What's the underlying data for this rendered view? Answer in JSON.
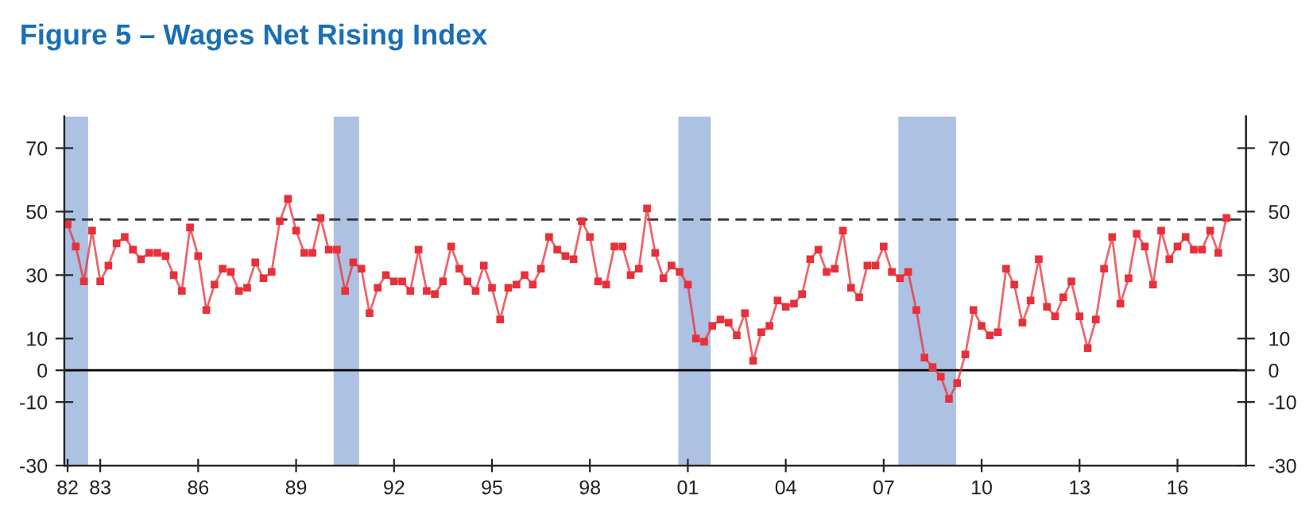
{
  "chart_data": {
    "type": "line",
    "title": "Figure 5 – Wages Net Rising Index",
    "x": [
      1982,
      1982.25,
      1982.5,
      1982.75,
      1983,
      1983.25,
      1983.5,
      1983.75,
      1984,
      1984.25,
      1984.5,
      1984.75,
      1985,
      1985.25,
      1985.5,
      1985.75,
      1986,
      1986.25,
      1986.5,
      1986.75,
      1987,
      1987.25,
      1987.5,
      1987.75,
      1988,
      1988.25,
      1988.5,
      1988.75,
      1989,
      1989.25,
      1989.5,
      1989.75,
      1990,
      1990.25,
      1990.5,
      1990.75,
      1991,
      1991.25,
      1991.5,
      1991.75,
      1992,
      1992.25,
      1992.5,
      1992.75,
      1993,
      1993.25,
      1993.5,
      1993.75,
      1994,
      1994.25,
      1994.5,
      1994.75,
      1995,
      1995.25,
      1995.5,
      1995.75,
      1996,
      1996.25,
      1996.5,
      1996.75,
      1997,
      1997.25,
      1997.5,
      1997.75,
      1998,
      1998.25,
      1998.5,
      1998.75,
      1999,
      1999.25,
      1999.5,
      1999.75,
      2000,
      2000.25,
      2000.5,
      2000.75,
      2001,
      2001.25,
      2001.5,
      2001.75,
      2002,
      2002.25,
      2002.5,
      2002.75,
      2003,
      2003.25,
      2003.5,
      2003.75,
      2004,
      2004.25,
      2004.5,
      2004.75,
      2005,
      2005.25,
      2005.5,
      2005.75,
      2006,
      2006.25,
      2006.5,
      2006.75,
      2007,
      2007.25,
      2007.5,
      2007.75,
      2008,
      2008.25,
      2008.5,
      2008.75,
      2009,
      2009.25,
      2009.5,
      2009.75,
      2010,
      2010.25,
      2010.5,
      2010.75,
      2011,
      2011.25,
      2011.5,
      2011.75,
      2012,
      2012.25,
      2012.5,
      2012.75,
      2013,
      2013.25,
      2013.5,
      2013.75,
      2014,
      2014.25,
      2014.5,
      2014.75,
      2015,
      2015.25,
      2015.5,
      2015.75,
      2016,
      2016.25,
      2016.5,
      2016.75,
      2017,
      2017.25,
      2017.5
    ],
    "series": [
      {
        "color": "#e8303a",
        "values": [
          46,
          39,
          28,
          44,
          28,
          33,
          40,
          42,
          38,
          35,
          37,
          37,
          36,
          30,
          25,
          45,
          36,
          19,
          27,
          32,
          31,
          25,
          26,
          34,
          29,
          31,
          47,
          54,
          44,
          37,
          37,
          48,
          38,
          38,
          25,
          34,
          32,
          18,
          26,
          30,
          28,
          28,
          25,
          38,
          25,
          24,
          28,
          39,
          32,
          28,
          25,
          33,
          26,
          16,
          26,
          27,
          30,
          27,
          32,
          42,
          38,
          36,
          35,
          47,
          42,
          28,
          27,
          39,
          39,
          30,
          32,
          51,
          37,
          29,
          33,
          31,
          27,
          10,
          9,
          14,
          16,
          15,
          11,
          18,
          3,
          12,
          14,
          22,
          20,
          21,
          24,
          35,
          38,
          31,
          32,
          44,
          26,
          23,
          33,
          33,
          39,
          31,
          29,
          31,
          19,
          4,
          1,
          -2,
          -9,
          -4,
          5,
          19,
          14,
          11,
          12,
          32,
          27,
          15,
          22,
          35,
          20,
          17,
          23,
          28,
          17,
          7,
          16,
          32,
          42,
          21,
          29,
          43,
          39,
          27,
          44,
          35,
          39,
          42,
          38,
          38,
          44,
          37,
          48
        ]
      }
    ],
    "marker": "square",
    "line_style": "solid",
    "xlim": [
      1981.9,
      2018.1
    ],
    "xticks": [
      {
        "value": 1982,
        "label": "82"
      },
      {
        "value": 1983,
        "label": "83"
      },
      {
        "value": 1986,
        "label": "86"
      },
      {
        "value": 1989,
        "label": "89"
      },
      {
        "value": 1992,
        "label": "92"
      },
      {
        "value": 1995,
        "label": "95"
      },
      {
        "value": 1998,
        "label": "98"
      },
      {
        "value": 2001,
        "label": "01"
      },
      {
        "value": 2004,
        "label": "04"
      },
      {
        "value": 2007,
        "label": "07"
      },
      {
        "value": 2010,
        "label": "10"
      },
      {
        "value": 2013,
        "label": "13"
      },
      {
        "value": 2016,
        "label": "16"
      }
    ],
    "ylim": [
      -30,
      80
    ],
    "yticks": [
      -30,
      -10,
      0,
      10,
      30,
      50,
      70
    ],
    "y2lim": [
      -30,
      80
    ],
    "y2ticks": [
      -30,
      -10,
      0,
      10,
      30,
      50,
      70
    ],
    "ref_lines": [
      {
        "axis": "y",
        "value": 47.5,
        "color": "#333333",
        "line_style": "dashed"
      },
      {
        "axis": "y",
        "value": 0,
        "color": "#000000",
        "line_style": "solid"
      }
    ],
    "bands": [
      {
        "axis": "x",
        "from": 1981.9,
        "to": 1982.63,
        "color": "#9fb6de"
      },
      {
        "axis": "x",
        "from": 1990.15,
        "to": 1990.93,
        "color": "#9fb6de"
      },
      {
        "axis": "x",
        "from": 2000.71,
        "to": 2001.7,
        "color": "#9fb6de"
      },
      {
        "axis": "x",
        "from": 2007.45,
        "to": 2009.22,
        "color": "#9fb6de"
      }
    ],
    "grid": false,
    "legend": false
  }
}
